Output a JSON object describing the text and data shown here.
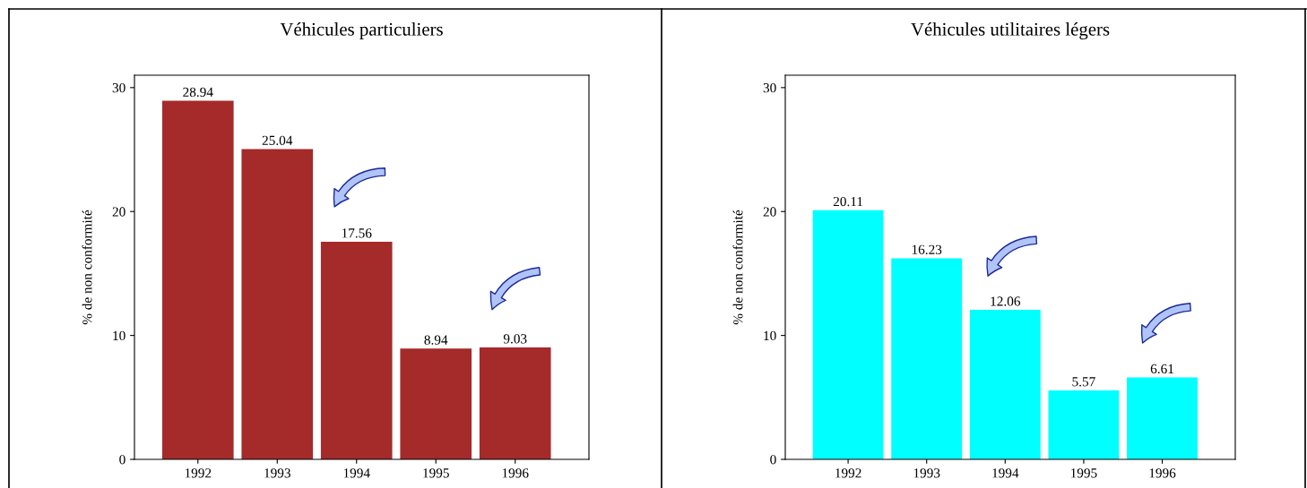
{
  "chart_data": [
    {
      "type": "bar",
      "title": "Véhicules particuliers",
      "ylabel": "% de non conformité",
      "categories": [
        "1992",
        "1993",
        "1994",
        "1995",
        "1996"
      ],
      "values": [
        28.94,
        25.04,
        17.56,
        8.94,
        9.03
      ],
      "color": "#a52a2a",
      "ylim": [
        0,
        31
      ],
      "yticks": [
        0,
        10,
        20,
        30
      ],
      "data_labels": true,
      "grid": false,
      "legend": false
    },
    {
      "type": "bar",
      "title": "Véhicules utilitaires légers",
      "ylabel": "% de non conformité",
      "categories": [
        "1992",
        "1993",
        "1994",
        "1995",
        "1996"
      ],
      "values": [
        20.11,
        16.23,
        12.06,
        5.57,
        6.61
      ],
      "color": "#00ffff",
      "ylim": [
        0,
        31
      ],
      "yticks": [
        0,
        10,
        20,
        30
      ],
      "data_labels": true,
      "grid": false,
      "legend": false
    }
  ]
}
